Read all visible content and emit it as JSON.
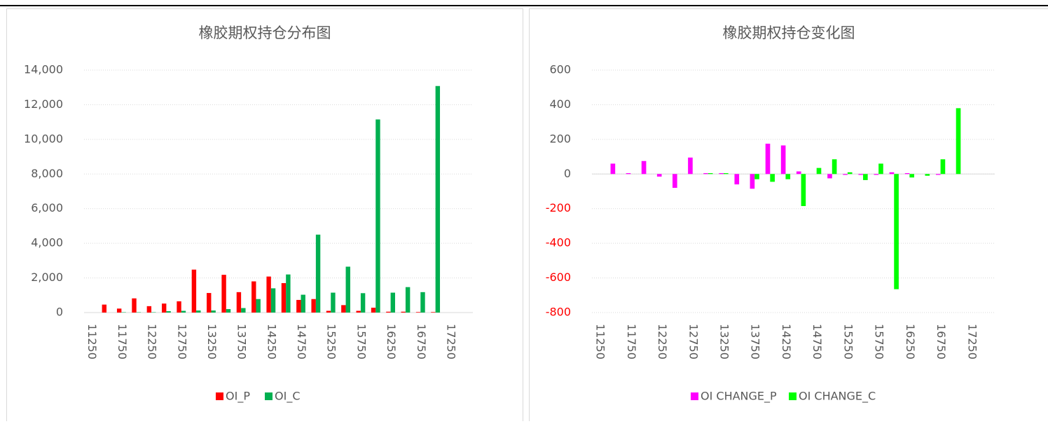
{
  "chart_data": [
    {
      "type": "bar",
      "title": "橡胶期权持仓分布图",
      "categories": [
        "11250",
        null,
        "11750",
        null,
        "12250",
        null,
        "12750",
        null,
        "13250",
        null,
        "13750",
        null,
        "14250",
        null,
        "14750",
        null,
        "15250",
        null,
        "15750",
        null,
        "16250",
        null,
        "16750",
        null,
        "17250",
        null
      ],
      "series": [
        {
          "name": "OI_P",
          "color": "#ff0000",
          "values": [
            0,
            460,
            230,
            820,
            370,
            520,
            650,
            2480,
            1130,
            2180,
            1180,
            1800,
            2080,
            1700,
            730,
            780,
            100,
            430,
            100,
            280,
            50,
            50,
            30,
            30,
            0,
            0
          ]
        },
        {
          "name": "OI_C",
          "color": "#00b050",
          "values": [
            0,
            0,
            20,
            20,
            20,
            80,
            100,
            120,
            120,
            200,
            260,
            780,
            1400,
            2200,
            1030,
            4500,
            1150,
            2650,
            1120,
            11150,
            1150,
            1470,
            1180,
            13080,
            0,
            0
          ]
        }
      ],
      "ylim": [
        0,
        14000
      ],
      "yticks": [
        0,
        {
          "value": 2000,
          "label": "2,000"
        },
        {
          "value": 4000,
          "label": "4,000"
        },
        {
          "value": 6000,
          "label": "6,000"
        },
        {
          "value": 8000,
          "label": "8,000"
        },
        {
          "value": 10000,
          "label": "10,000"
        },
        {
          "value": 12000,
          "label": "12,000"
        },
        {
          "value": 14000,
          "label": "14,000"
        }
      ],
      "grid": true,
      "legend": "bottom"
    },
    {
      "type": "bar",
      "title": "橡胶期权持仓变化图",
      "categories": [
        "11250",
        null,
        "11750",
        null,
        "12250",
        null,
        "12750",
        null,
        "13250",
        null,
        "13750",
        null,
        "14250",
        null,
        "14750",
        null,
        "15250",
        null,
        "15750",
        null,
        "16250",
        null,
        "16750",
        null,
        "17250",
        null
      ],
      "series": [
        {
          "name": "OI CHANGE_P",
          "color": "#ff00ff",
          "values": [
            0,
            60,
            5,
            75,
            -15,
            -80,
            95,
            5,
            5,
            -60,
            -85,
            175,
            165,
            15,
            0,
            -25,
            -5,
            -5,
            -5,
            10,
            5,
            0,
            -5,
            0,
            0,
            0
          ]
        },
        {
          "name": "OI CHANGE_C",
          "color": "#00ff00",
          "values": [
            0,
            0,
            0,
            0,
            0,
            0,
            0,
            5,
            5,
            0,
            -30,
            -45,
            -30,
            -185,
            35,
            85,
            10,
            -35,
            60,
            -665,
            -20,
            -10,
            85,
            380,
            0,
            0
          ]
        }
      ],
      "ylim": [
        -800,
        600
      ],
      "yticks": [
        -800,
        -600,
        -400,
        -200,
        0,
        200,
        400,
        600
      ],
      "negative_tick_color": "#ff0000",
      "grid": true,
      "legend": "bottom"
    }
  ]
}
